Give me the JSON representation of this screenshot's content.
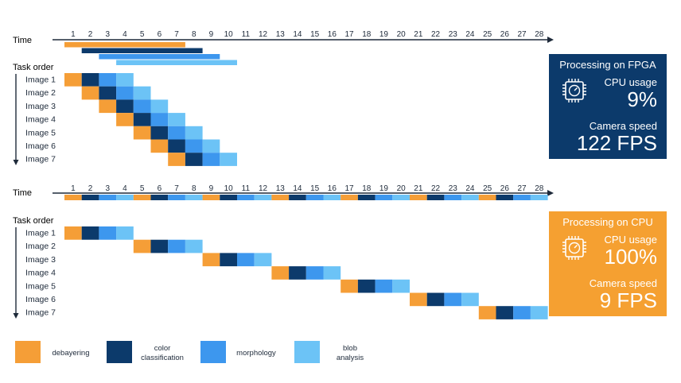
{
  "colors": {
    "debayering": "#f59e37",
    "color_classification": "#0c3a6b",
    "morphology": "#3d97ee",
    "blob_analysis": "#6cc3f6",
    "fpga_panel": "#0c3a6b",
    "cpu_panel": "#f5a031",
    "text": "#1e2a3a"
  },
  "fpga": {
    "time_label": "Time",
    "task_label": "Task order",
    "ticks": [
      "1",
      "2",
      "3",
      "4",
      "5",
      "6",
      "7",
      "8",
      "9",
      "10",
      "11",
      "12",
      "13",
      "14",
      "15",
      "16",
      "17",
      "18",
      "19",
      "20",
      "21",
      "22",
      "23",
      "24",
      "25",
      "26",
      "27",
      "28"
    ],
    "time_bars": [
      {
        "stage": "debayering",
        "start": 1,
        "end": 8
      },
      {
        "stage": "color_classification",
        "start": 2,
        "end": 9
      },
      {
        "stage": "morphology",
        "start": 3,
        "end": 10
      },
      {
        "stage": "blob_analysis",
        "start": 4,
        "end": 11
      }
    ],
    "images": [
      {
        "label": "Image 1",
        "start": 1
      },
      {
        "label": "Image 2",
        "start": 2
      },
      {
        "label": "Image 3",
        "start": 3
      },
      {
        "label": "Image 4",
        "start": 4
      },
      {
        "label": "Image 5",
        "start": 5
      },
      {
        "label": "Image 6",
        "start": 6
      },
      {
        "label": "Image 7",
        "start": 7
      }
    ],
    "panel": {
      "title": "Processing on FPGA",
      "cpu_label": "CPU usage",
      "cpu_value": "9%",
      "speed_label": "Camera speed",
      "speed_value": "122 FPS",
      "icon": "processor-chip-icon"
    }
  },
  "cpu": {
    "time_label": "Time",
    "task_label": "Task order",
    "ticks": [
      "1",
      "2",
      "3",
      "4",
      "5",
      "6",
      "7",
      "8",
      "9",
      "10",
      "11",
      "12",
      "13",
      "14",
      "15",
      "16",
      "17",
      "18",
      "19",
      "20",
      "21",
      "22",
      "23",
      "24",
      "25",
      "26",
      "27",
      "28"
    ],
    "images": [
      {
        "label": "Image 1",
        "start": 1
      },
      {
        "label": "Image 2",
        "start": 5
      },
      {
        "label": "Image 3",
        "start": 9
      },
      {
        "label": "Image 4",
        "start": 13
      },
      {
        "label": "Image 5",
        "start": 17
      },
      {
        "label": "Image 6",
        "start": 21
      },
      {
        "label": "Image 7",
        "start": 25
      }
    ],
    "panel": {
      "title": "Processing on CPU",
      "cpu_label": "CPU usage",
      "cpu_value": "100%",
      "speed_label": "Camera speed",
      "speed_value": "9 FPS",
      "icon": "processor-chip-icon"
    }
  },
  "stage_order": [
    "debayering",
    "color_classification",
    "morphology",
    "blob_analysis"
  ],
  "legend": [
    {
      "stage": "debayering",
      "label": "debayering"
    },
    {
      "stage": "color_classification",
      "label": "color classification"
    },
    {
      "stage": "morphology",
      "label": "morphology"
    },
    {
      "stage": "blob_analysis",
      "label": "blob analysis"
    }
  ]
}
